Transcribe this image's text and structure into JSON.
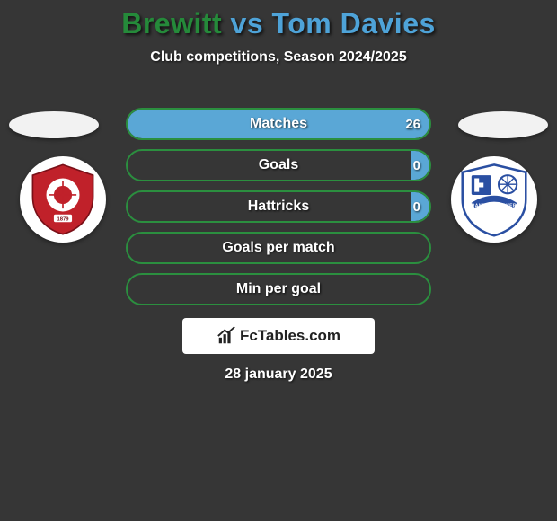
{
  "title": {
    "player1": "Brewitt",
    "vs": "vs",
    "player2": "Tom Davies",
    "color1": "#258a3a",
    "color_vs": "#4ea3d8",
    "color2": "#4ea3d8"
  },
  "subtitle": "Club competitions, Season 2024/2025",
  "background_color": "#363636",
  "player1": {
    "accent_border": "#2b8f3f",
    "bar_fill": "#2b8f3f",
    "club_shield_bg": "#c0212a"
  },
  "player2": {
    "accent_border": "#5aa7d6",
    "bar_fill": "#5aa7d6",
    "club_shield_bg": "#2a4fa2"
  },
  "bars": [
    {
      "label": "Matches",
      "left": "",
      "right": "26",
      "right_fill_pct": 100
    },
    {
      "label": "Goals",
      "left": "",
      "right": "0",
      "right_fill_pct": 6
    },
    {
      "label": "Hattricks",
      "left": "",
      "right": "0",
      "right_fill_pct": 6
    },
    {
      "label": "Goals per match",
      "left": "",
      "right": "",
      "right_fill_pct": 0
    },
    {
      "label": "Min per goal",
      "left": "",
      "right": "",
      "right_fill_pct": 0
    }
  ],
  "watermark": "FcTables.com",
  "date": "28 january 2025"
}
